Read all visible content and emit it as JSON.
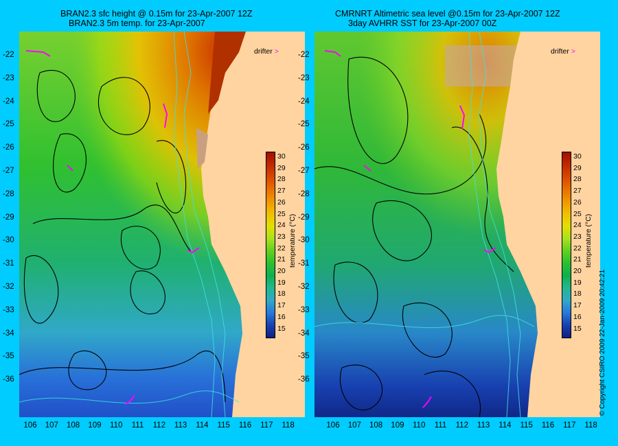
{
  "left_panel": {
    "title_line1": "BRAN2.3 sfc height @ 0.15m for 23-Apr-2007 12Z",
    "title_line2": "BRAN2.3 5m temp. for 23-Apr-2007"
  },
  "right_panel": {
    "title_line1": "CMRNRT Altimetric sea level  @0.15m  for 23-Apr-2007 12Z",
    "title_line2": "3day AVHRR SST for 23-Apr-2007 00Z"
  },
  "latitude_labels": [
    "-22",
    "-23",
    "-24",
    "-25",
    "-26",
    "-27",
    "-28",
    "-29",
    "-30",
    "-31",
    "-32",
    "-33",
    "-34",
    "-35",
    "-36"
  ],
  "longitude_labels": [
    "106",
    "107",
    "108",
    "109",
    "110",
    "111",
    "112",
    "113",
    "114",
    "115",
    "116",
    "117",
    "118"
  ],
  "colorbar": {
    "ticks": [
      "30",
      "29",
      "28",
      "27",
      "26",
      "25",
      "24",
      "23",
      "22",
      "21",
      "20",
      "19",
      "18",
      "17",
      "16",
      "15"
    ],
    "label": "temperature (°C)",
    "colors": [
      "#a01000",
      "#c02800",
      "#d84800",
      "#e87000",
      "#f09800",
      "#f0c000",
      "#e0e000",
      "#a8e020",
      "#60d020",
      "#28c030",
      "#10b050",
      "#20b890",
      "#30a8c8",
      "#2878d8",
      "#1840b0",
      "#102080"
    ]
  },
  "legend": {
    "drifter_label": "drifter"
  },
  "copyright": "© Copyright CSIRO 2009   22-Jan-2009 20:42:21",
  "colors": {
    "background": "#00ccff",
    "land": "#ffd4a0",
    "drifter": "#ff00ff",
    "contour": "#000000",
    "isobath": "#40e0e0"
  }
}
